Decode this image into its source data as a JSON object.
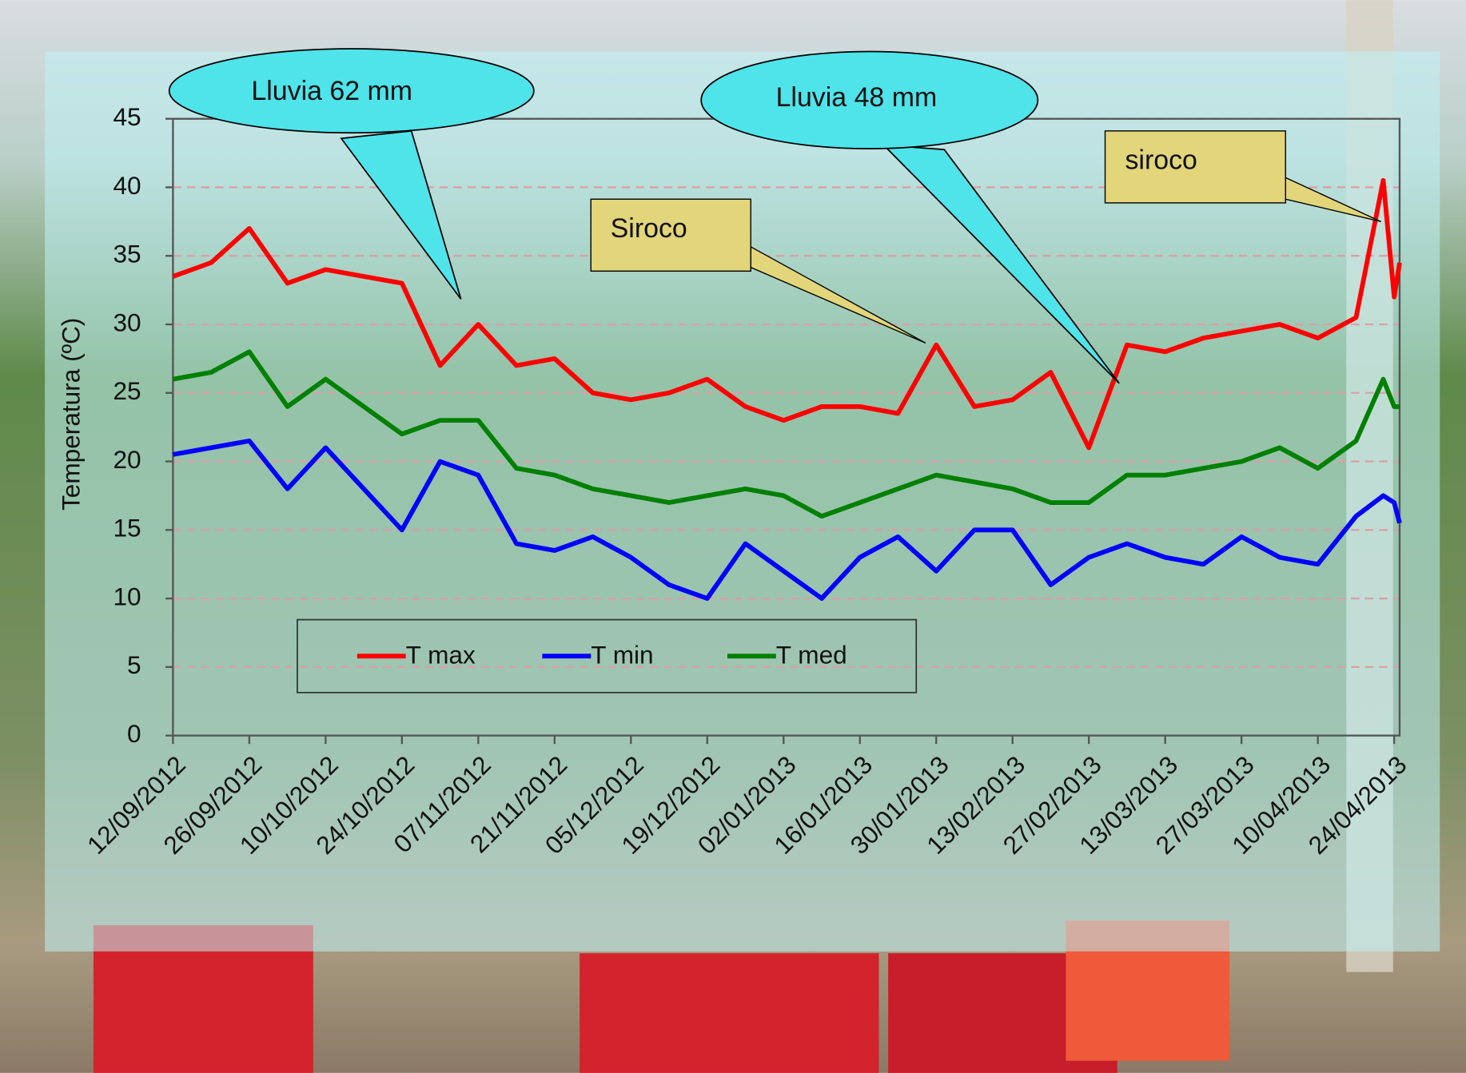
{
  "chart_data": {
    "type": "line",
    "y_label": "Temperatura (ºC)",
    "x": [
      "12/09/2012",
      "19/09/2012",
      "26/09/2012",
      "03/10/2012",
      "10/10/2012",
      "17/10/2012",
      "24/10/2012",
      "31/10/2012",
      "07/11/2012",
      "14/11/2012",
      "21/11/2012",
      "28/11/2012",
      "05/12/2012",
      "12/12/2012",
      "19/12/2012",
      "26/12/2012",
      "02/01/2013",
      "09/01/2013",
      "16/01/2013",
      "23/01/2013",
      "30/01/2013",
      "06/02/2013",
      "13/02/2013",
      "20/02/2013",
      "27/02/2013",
      "06/03/2013",
      "13/03/2013",
      "20/03/2013",
      "27/03/2013",
      "03/04/2013",
      "10/04/2013",
      "17/04/2013",
      "22/04/2013",
      "24/04/2013",
      "25/04/2013"
    ],
    "series": [
      {
        "name": "T max",
        "color": "#ff0000",
        "values": [
          33.5,
          34.5,
          37,
          33,
          34,
          33.5,
          33,
          27,
          30,
          27,
          27.5,
          25,
          24.5,
          25,
          26,
          24,
          23,
          24,
          24,
          23.5,
          28.5,
          24,
          24.5,
          26.5,
          21,
          28.5,
          28,
          29,
          29.5,
          30,
          29,
          30.5,
          40.5,
          32,
          34.5
        ]
      },
      {
        "name": "T min",
        "color": "#0000ff",
        "values": [
          20.5,
          21,
          21.5,
          18,
          21,
          18,
          15,
          20,
          19,
          14,
          13.5,
          14.5,
          13,
          11,
          10,
          14,
          12,
          10,
          13,
          14.5,
          12,
          15,
          15,
          11,
          13,
          14,
          13,
          12.5,
          14.5,
          13,
          12.5,
          16,
          17.5,
          17,
          15.5
        ]
      },
      {
        "name": "T med",
        "color": "#008000",
        "values": [
          26,
          26.5,
          28,
          24,
          26,
          24,
          22,
          23,
          23,
          19.5,
          19,
          18,
          17.5,
          17,
          17.5,
          18,
          17.5,
          16,
          17,
          18,
          19,
          18.5,
          18,
          17,
          17,
          19,
          19,
          19.5,
          20,
          21,
          19.5,
          21.5,
          26,
          24,
          24
        ]
      }
    ],
    "xlim": [
      "12/09/2012",
      "25/04/2013"
    ],
    "xticks": [
      "12/09/2012",
      "26/09/2012",
      "10/10/2012",
      "24/10/2012",
      "07/11/2012",
      "21/11/2012",
      "05/12/2012",
      "19/12/2012",
      "02/01/2013",
      "16/01/2013",
      "30/01/2013",
      "13/02/2013",
      "27/02/2013",
      "13/03/2013",
      "27/03/2013",
      "10/04/2013",
      "24/04/2013"
    ],
    "ylim": [
      0,
      45
    ],
    "yticks": [
      0,
      5,
      10,
      15,
      20,
      25,
      30,
      35,
      40,
      45
    ],
    "grid": true,
    "legend_position": "lower center",
    "annotations": [
      "Lluvia 62 mm",
      "Lluvia 48 mm",
      "Siroco",
      "siroco"
    ]
  }
}
